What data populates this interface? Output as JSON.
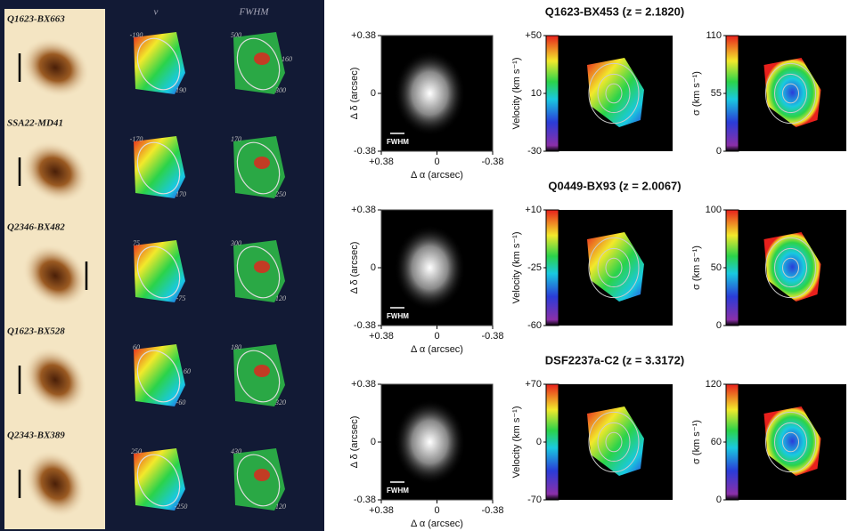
{
  "left_panel": {
    "column_headers": [
      "v",
      "FWHM"
    ],
    "rows": [
      {
        "name": "Q1623-BX663",
        "v_labels": [
          -190,
          190
        ],
        "fwhm_labels": [
          500,
          300,
          160
        ]
      },
      {
        "name": "SSA22-MD41",
        "v_labels": [
          -170,
          170
        ],
        "fwhm_labels": [
          170,
          250
        ]
      },
      {
        "name": "Q2346-BX482",
        "v_labels": [
          75,
          -75
        ],
        "fwhm_labels": [
          300,
          120
        ]
      },
      {
        "name": "Q1623-BX528",
        "v_labels": [
          60,
          -60,
          60
        ],
        "fwhm_labels": [
          180,
          320
        ]
      },
      {
        "name": "Q2343-BX389",
        "v_labels": [
          250,
          -250
        ],
        "fwhm_labels": [
          430,
          120
        ]
      }
    ]
  },
  "right_panel": {
    "rows": [
      {
        "title": "Q1623-BX453 (z = 2.1820)",
        "image": {
          "ylabel": "Δ δ (arcsec)",
          "xlabel": "Δ α (arcsec)",
          "beam_label": "FWHM",
          "yticks": [
            {
              "value": 0.38,
              "label": "+0.38"
            },
            0,
            -0.38
          ],
          "xticks": [
            {
              "value": 0.38,
              "label": "+0.38"
            },
            0,
            -0.38
          ]
        },
        "velocity": {
          "label": "Velocity (km s⁻¹)",
          "ticks": [
            {
              "value": 50,
              "label": "+50"
            },
            10,
            -30
          ]
        },
        "sigma": {
          "label": "σ (km s⁻¹)",
          "ticks": [
            110,
            55,
            0
          ]
        }
      },
      {
        "title": "Q0449-BX93 (z = 2.0067)",
        "image": {
          "ylabel": "Δ δ (arcsec)",
          "xlabel": "Δ α (arcsec)",
          "beam_label": "FWHM",
          "yticks": [
            {
              "value": 0.38,
              "label": "+0.38"
            },
            0,
            -0.38
          ],
          "xticks": [
            {
              "value": 0.38,
              "label": "+0.38"
            },
            0,
            -0.38
          ]
        },
        "velocity": {
          "label": "Velocity (km s⁻¹)",
          "ticks": [
            {
              "value": 10,
              "label": "+10"
            },
            -25,
            -60
          ]
        },
        "sigma": {
          "label": "σ (km s⁻¹)",
          "ticks": [
            100,
            50,
            0
          ]
        }
      },
      {
        "title": "DSF2237a-C2 (z = 3.3172)",
        "image": {
          "ylabel": "Δ δ (arcsec)",
          "xlabel": "Δ α (arcsec)",
          "beam_label": "FWHM",
          "yticks": [
            {
              "value": 0.38,
              "label": "+0.38"
            },
            0,
            -0.38
          ],
          "xticks": [
            {
              "value": 0.38,
              "label": "+0.38"
            },
            0,
            -0.38
          ]
        },
        "velocity": {
          "label": "Velocity (km s⁻¹)",
          "ticks": [
            {
              "value": 70,
              "label": "+70"
            },
            0,
            -70
          ]
        },
        "sigma": {
          "label": "σ (km s⁻¹)",
          "ticks": [
            120,
            60,
            0
          ]
        }
      }
    ]
  }
}
